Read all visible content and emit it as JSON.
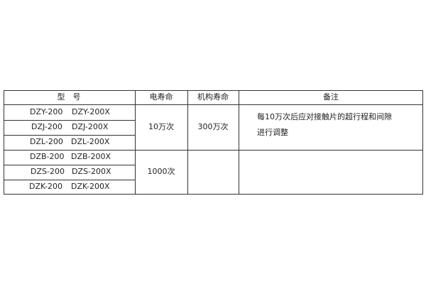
{
  "table": {
    "headers": [
      "型　号",
      "电寿命",
      "机构寿命",
      "备注"
    ],
    "rows": [
      {
        "model": "DZY-200",
        "model_x": "DZY-200X"
      },
      {
        "model": "DZJ-200",
        "model_x": "DZJ-200X"
      },
      {
        "model": "DZL-200",
        "model_x": "DZL-200X"
      },
      {
        "model": "DZB-200",
        "model_x": "DZB-200X"
      },
      {
        "model": "DZS-200",
        "model_x": "DZS-200X"
      },
      {
        "model": "DZK-200",
        "model_x": "DZK-200X"
      }
    ],
    "group1": {
      "electrical_life": "10万次",
      "mechanical_life": "300万次",
      "note_line1": "每10万次后应对接触片的超行程和间隙",
      "note_line2": "进行调整"
    },
    "group2": {
      "electrical_life": "1000次"
    }
  }
}
